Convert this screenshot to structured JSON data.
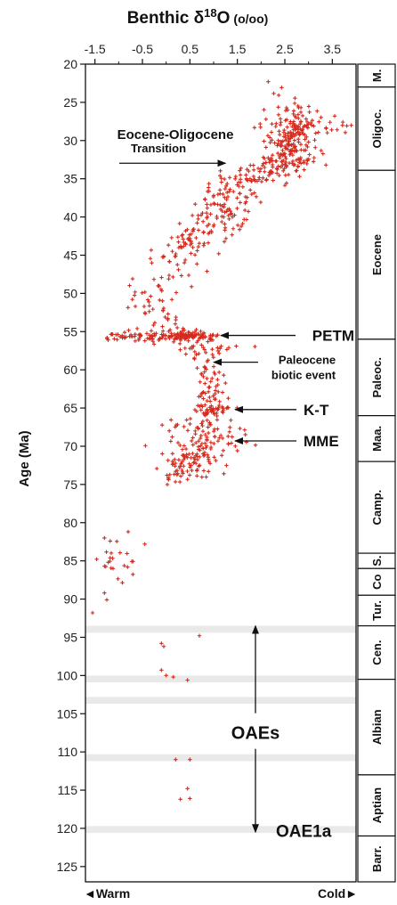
{
  "chart_data": {
    "type": "scatter",
    "title": "Benthic δ18O (o/oo)",
    "title_parts": {
      "base": "Benthic δ",
      "sup": "18",
      "rest": "O",
      "unit": "(o/oo)"
    },
    "ylabel": "Age (Ma)",
    "xlim": [
      -1.7,
      4.0
    ],
    "ylim": [
      20,
      127
    ],
    "y_reversed": true,
    "x_axis_position": "top",
    "xticks": [
      -1.5,
      -0.5,
      0.5,
      1.5,
      2.5,
      3.5
    ],
    "xtick_labels": [
      "-1.5",
      "-0.5",
      "0.5",
      "1.5",
      "2.5",
      "3.5"
    ],
    "yticks": [
      20,
      25,
      30,
      35,
      40,
      45,
      50,
      55,
      60,
      65,
      70,
      75,
      80,
      85,
      90,
      95,
      100,
      105,
      110,
      115,
      120,
      125
    ],
    "bottom_labels": {
      "left": "◄Warm",
      "right": "Cold►"
    },
    "marker_color": "#d42a1e",
    "band_color": "#e9e9e9",
    "oae_bands": [
      [
        93.5,
        94.4
      ],
      [
        100.0,
        100.9
      ],
      [
        102.8,
        103.7
      ],
      [
        110.3,
        111.2
      ],
      [
        119.7,
        120.6
      ]
    ],
    "epochs": [
      {
        "label": "M.",
        "start": 20,
        "end": 23
      },
      {
        "label": "Oligoc.",
        "start": 23,
        "end": 33.9
      },
      {
        "label": "Eocene",
        "start": 33.9,
        "end": 56
      },
      {
        "label": "Paleoc.",
        "start": 56,
        "end": 66
      },
      {
        "label": "Maa.",
        "start": 66,
        "end": 72
      },
      {
        "label": "Camp.",
        "start": 72,
        "end": 84
      },
      {
        "label": "S.",
        "start": 84,
        "end": 86
      },
      {
        "label": "Co",
        "start": 86,
        "end": 89.5
      },
      {
        "label": "Tur.",
        "start": 89.5,
        "end": 93.5
      },
      {
        "label": "Cen.",
        "start": 93.5,
        "end": 100.5
      },
      {
        "label": "Albian",
        "start": 100.5,
        "end": 113
      },
      {
        "label": "Aptian",
        "start": 113,
        "end": 121
      },
      {
        "label": "Barr.",
        "start": 121,
        "end": 127
      }
    ],
    "series": [
      {
        "clusters": [
          {
            "x": 2.6,
            "y": 30.5,
            "sx": 0.28,
            "sy": 2.4,
            "n": 170
          },
          {
            "x": 2.75,
            "y": 27.5,
            "sx": 0.2,
            "sy": 1.2,
            "n": 35
          },
          {
            "x": 3.3,
            "y": 28.0,
            "sx": 0.35,
            "sy": 0.8,
            "n": 18
          },
          {
            "x": 2.55,
            "y": 33.0,
            "sx": 0.3,
            "sy": 0.5,
            "n": 40
          },
          {
            "x": 1.65,
            "y": 34.6,
            "sx": 0.35,
            "sy": 0.8,
            "n": 45
          },
          {
            "x": 1.35,
            "y": 37.5,
            "sx": 0.3,
            "sy": 1.5,
            "n": 55
          },
          {
            "x": 0.95,
            "y": 40.8,
            "sx": 0.3,
            "sy": 1.6,
            "n": 55
          },
          {
            "x": 0.45,
            "y": 43.5,
            "sx": 0.22,
            "sy": 1.2,
            "n": 40
          },
          {
            "x": 0.15,
            "y": 46.8,
            "sx": 0.28,
            "sy": 1.6,
            "n": 25
          },
          {
            "x": -0.35,
            "y": 49.5,
            "sx": 0.25,
            "sy": 1.0,
            "n": 12
          },
          {
            "x": -0.25,
            "y": 52.8,
            "sx": 0.3,
            "sy": 1.3,
            "n": 30
          },
          {
            "x": 0.2,
            "y": 55.6,
            "sx": 0.4,
            "sy": 0.5,
            "n": 60
          },
          {
            "x": 0.75,
            "y": 57.0,
            "sx": 0.35,
            "sy": 0.9,
            "n": 28
          },
          {
            "x": 0.9,
            "y": 60.5,
            "sx": 0.22,
            "sy": 1.8,
            "n": 40
          },
          {
            "x": 0.85,
            "y": 64.8,
            "sx": 0.2,
            "sy": 1.5,
            "n": 45
          },
          {
            "x": 0.85,
            "y": 68.5,
            "sx": 0.35,
            "sy": 1.6,
            "n": 70
          },
          {
            "x": 0.5,
            "y": 71.5,
            "sx": 0.35,
            "sy": 1.4,
            "n": 70
          },
          {
            "x": 0.35,
            "y": 73.5,
            "sx": 0.3,
            "sy": 0.7,
            "n": 25
          },
          {
            "x": -1.0,
            "y": 85.0,
            "sx": 0.2,
            "sy": 1.8,
            "n": 22
          }
        ],
        "rows": [
          {
            "y": 55.6,
            "x0": -1.3,
            "x1": 1.1,
            "n": 90
          },
          {
            "y": 65.0,
            "x0": 0.6,
            "x1": 1.5,
            "n": 22
          }
        ],
        "points": [
          [
            2.15,
            22.3
          ],
          [
            -0.8,
            81.2
          ],
          [
            -0.45,
            82.8
          ],
          [
            -1.3,
            82.0
          ],
          [
            -1.55,
            91.8
          ],
          [
            -1.3,
            89.2
          ],
          [
            -1.25,
            90.1
          ],
          [
            -0.1,
            95.8
          ],
          [
            -0.05,
            96.2
          ],
          [
            0.7,
            94.8
          ],
          [
            -0.1,
            99.3
          ],
          [
            0.0,
            100.0
          ],
          [
            0.15,
            100.2
          ],
          [
            0.45,
            100.6
          ],
          [
            0.2,
            111.0
          ],
          [
            0.5,
            111.0
          ],
          [
            0.45,
            114.8
          ],
          [
            0.3,
            116.2
          ],
          [
            0.5,
            116.1
          ],
          [
            3.9,
            28.0
          ],
          [
            3.55,
            26.8
          ]
        ]
      }
    ],
    "annotations": [
      {
        "id": "eo-transition",
        "text": "Eocene-Oligocene",
        "sub": "Transition",
        "y": 32.5,
        "arrow_to_x": 1.25
      },
      {
        "id": "petm",
        "text": "PETM",
        "y": 55.5,
        "arrow_to_x": 1.15
      },
      {
        "id": "paleocene-event",
        "text": "Paleocene",
        "sub": "biotic event",
        "y": 59.0,
        "arrow_to_x": 1.0
      },
      {
        "id": "kt",
        "text": "K-T",
        "y": 65.2,
        "arrow_to_x": 1.45
      },
      {
        "id": "mme",
        "text": "MME",
        "y": 69.3,
        "arrow_to_x": 1.45
      },
      {
        "id": "oaes",
        "text": "OAEs",
        "y": 107.5,
        "arrow_top": 93.5,
        "arrow_bottom": 120.5
      },
      {
        "id": "oae1a",
        "text": "OAE1a",
        "y": 120.3
      }
    ]
  }
}
